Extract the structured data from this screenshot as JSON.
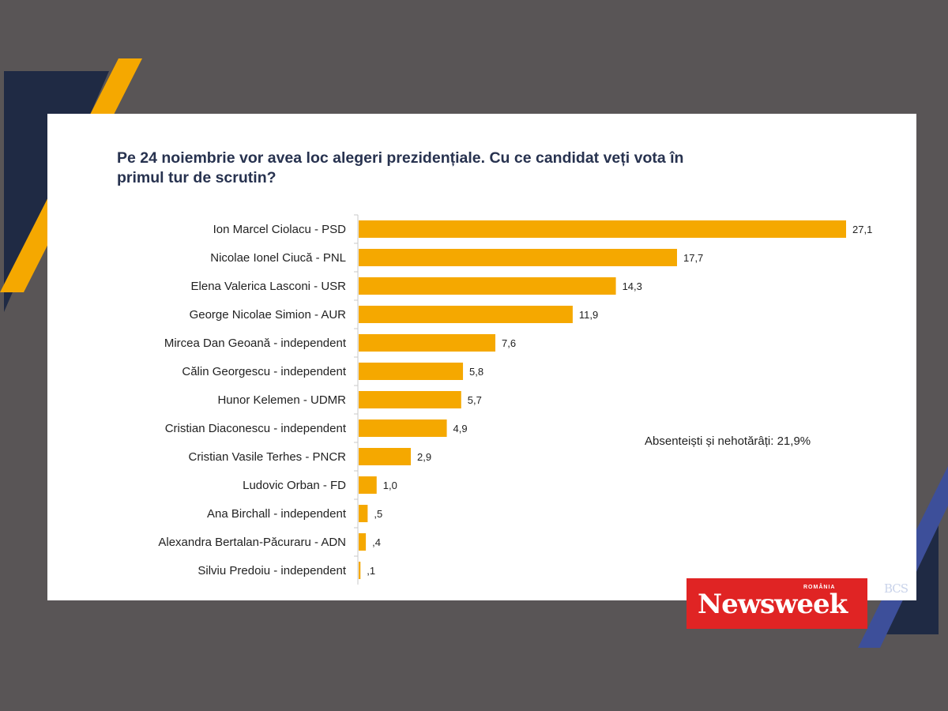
{
  "title_lines": [
    "Pe 24 noiembrie vor avea loc alegeri prezidențiale. Cu ce candidat veți vota în",
    "primul tur de scrutin?"
  ],
  "note": "Absenteiști și nehotărâți: 21,9%",
  "logo": {
    "main": "Newsweek",
    "sub": "ROMÂNIA",
    "partner": "BCS"
  },
  "colors": {
    "bar": "#f5a800",
    "background": "#595556",
    "navy": "#1f2a44",
    "orange": "#f5a800",
    "blue": "#3d4f9a",
    "logo_red": "#e02424"
  },
  "chart_data": {
    "type": "bar",
    "orientation": "horizontal",
    "title": "Pe 24 noiembrie vor avea loc alegeri prezidențiale. Cu ce candidat veți vota în primul tur de scrutin?",
    "categories": [
      "Ion Marcel Ciolacu - PSD",
      "Nicolae Ionel Ciucă - PNL",
      "Elena Valerica Lasconi - USR",
      "George Nicolae Simion - AUR",
      "Mircea Dan Geoană - independent",
      "Călin Georgescu - independent",
      "Hunor Kelemen - UDMR",
      "Cristian Diaconescu - independent",
      "Cristian Vasile Terhes - PNCR",
      "Ludovic Orban - FD",
      "Ana Birchall - independent",
      "Alexandra Bertalan-Păcuraru - ADN",
      "Silviu Predoiu - independent"
    ],
    "values": [
      27.1,
      17.7,
      14.3,
      11.9,
      7.6,
      5.8,
      5.7,
      4.9,
      2.9,
      1.0,
      0.5,
      0.4,
      0.1
    ],
    "value_labels": [
      "27,1",
      "17,7",
      "14,3",
      "11,9",
      "7,6",
      "5,8",
      "5,7",
      "4,9",
      "2,9",
      "1,0",
      ",5",
      ",4",
      ",1"
    ],
    "xlabel": "",
    "ylabel": "",
    "xlim": [
      0,
      27.1
    ],
    "grid": false,
    "legend": "none"
  }
}
